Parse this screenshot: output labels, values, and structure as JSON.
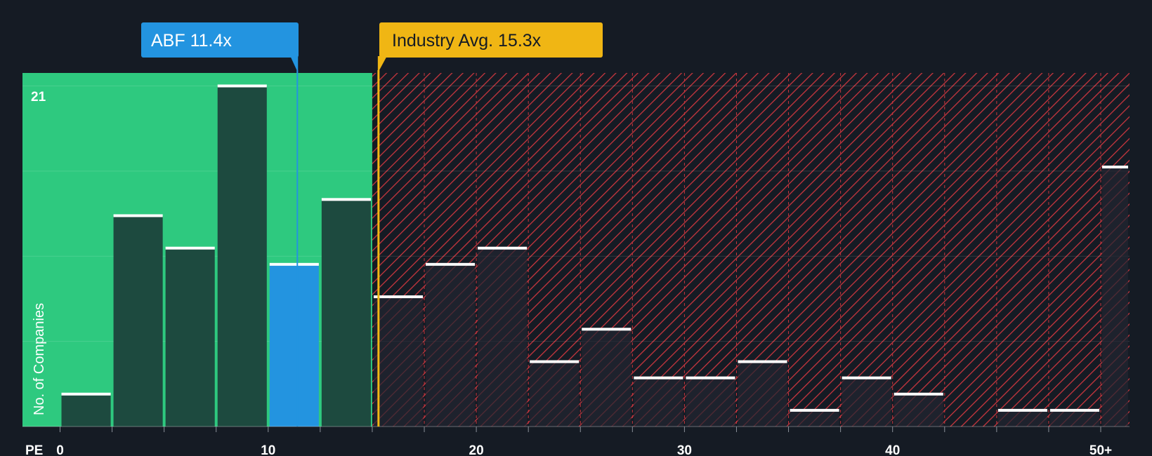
{
  "chart_data": {
    "type": "bar",
    "title": "",
    "xlabel": "PE",
    "ylabel": "No. of Companies",
    "xlim": [
      0,
      51.5
    ],
    "ylim": [
      0,
      21.8
    ],
    "bin_width": 2.5,
    "x_ticks": [
      {
        "value": 0,
        "label": "0"
      },
      {
        "value": 10,
        "label": "10"
      },
      {
        "value": 20,
        "label": "20"
      },
      {
        "value": 30,
        "label": "30"
      },
      {
        "value": 40,
        "label": "40"
      },
      {
        "value": 50,
        "label": "50+"
      }
    ],
    "y_gridlines": [
      5.25,
      10.5,
      15.75,
      21
    ],
    "y_max_label": "21",
    "bins": [
      {
        "start": 0,
        "end": 2.5,
        "count": 2
      },
      {
        "start": 2.5,
        "end": 5,
        "count": 13
      },
      {
        "start": 5,
        "end": 7.5,
        "count": 11
      },
      {
        "start": 7.5,
        "end": 10,
        "count": 21
      },
      {
        "start": 10,
        "end": 12.5,
        "count": 10,
        "highlight": true
      },
      {
        "start": 12.5,
        "end": 15,
        "count": 14
      },
      {
        "start": 15,
        "end": 17.5,
        "count": 8
      },
      {
        "start": 17.5,
        "end": 20,
        "count": 10
      },
      {
        "start": 20,
        "end": 22.5,
        "count": 11
      },
      {
        "start": 22.5,
        "end": 25,
        "count": 4
      },
      {
        "start": 25,
        "end": 27.5,
        "count": 6
      },
      {
        "start": 27.5,
        "end": 30,
        "count": 3
      },
      {
        "start": 30,
        "end": 32.5,
        "count": 3
      },
      {
        "start": 32.5,
        "end": 35,
        "count": 4
      },
      {
        "start": 35,
        "end": 37.5,
        "count": 1
      },
      {
        "start": 37.5,
        "end": 40,
        "count": 3
      },
      {
        "start": 40,
        "end": 42.5,
        "count": 2
      },
      {
        "start": 42.5,
        "end": 45,
        "count": 0
      },
      {
        "start": 45,
        "end": 47.5,
        "count": 1
      },
      {
        "start": 47.5,
        "end": 50,
        "count": 1
      },
      {
        "start": 50,
        "end": 52.5,
        "count": 16
      }
    ],
    "fair_zone_end": 15,
    "company": {
      "label": "ABF 11.4x",
      "value": 11.4
    },
    "industry_avg": {
      "label": "Industry Avg. 15.3x",
      "value": 15.3
    },
    "colors": {
      "background": "#151b24",
      "fair_zone": "#2ec97f",
      "bar_fair": "#1d4a3f",
      "bar_expensive": "#232530",
      "hatch": "#c8363e",
      "highlight": "#2394e0",
      "industry": "#f0b614",
      "bar_top": "#ffffff",
      "text": "#ffffff",
      "industry_text": "#151b24"
    }
  }
}
